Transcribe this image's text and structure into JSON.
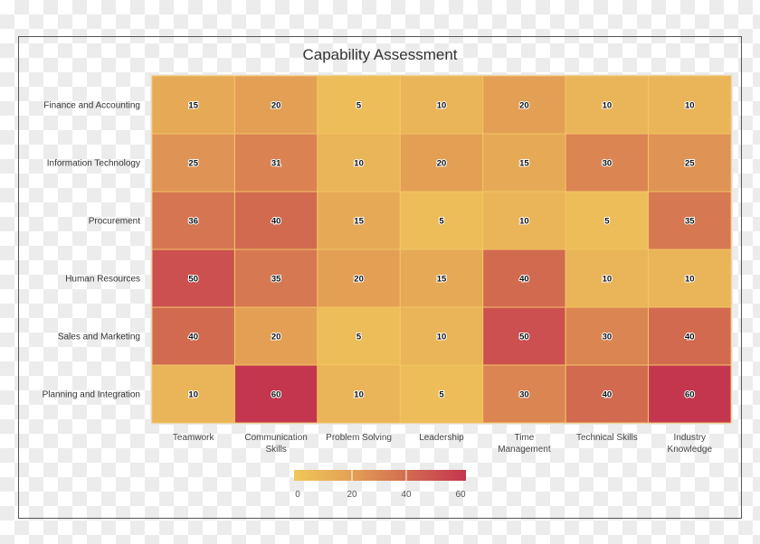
{
  "chart_data": {
    "type": "heatmap",
    "title": "Capability Assessment",
    "rows": [
      "Finance and Accounting",
      "Information Technology",
      "Procurement",
      "Human Resources",
      "Sales and Marketing",
      "Planning and Integration"
    ],
    "columns": [
      [
        "Teamwork"
      ],
      [
        "Communication",
        "Skills"
      ],
      [
        "Problem Solving"
      ],
      [
        "Leadership"
      ],
      [
        "Time",
        "Management"
      ],
      [
        "Technical Skills"
      ],
      [
        "Industry",
        "Knowledge"
      ]
    ],
    "values": [
      [
        15,
        20,
        5,
        10,
        20,
        10,
        10
      ],
      [
        25,
        31,
        10,
        20,
        15,
        30,
        25
      ],
      [
        36,
        40,
        15,
        5,
        10,
        5,
        35
      ],
      [
        50,
        35,
        20,
        15,
        40,
        10,
        10
      ],
      [
        40,
        20,
        5,
        10,
        50,
        30,
        40
      ],
      [
        10,
        60,
        10,
        5,
        30,
        40,
        60
      ]
    ],
    "colorscale": {
      "range": [
        0,
        60
      ],
      "ticks": [
        "0",
        "20",
        "40",
        "60"
      ],
      "colors": [
        "#f0c75a",
        "#e3a055",
        "#d26a50",
        "#c4364e"
      ]
    },
    "legend": "bottom"
  }
}
